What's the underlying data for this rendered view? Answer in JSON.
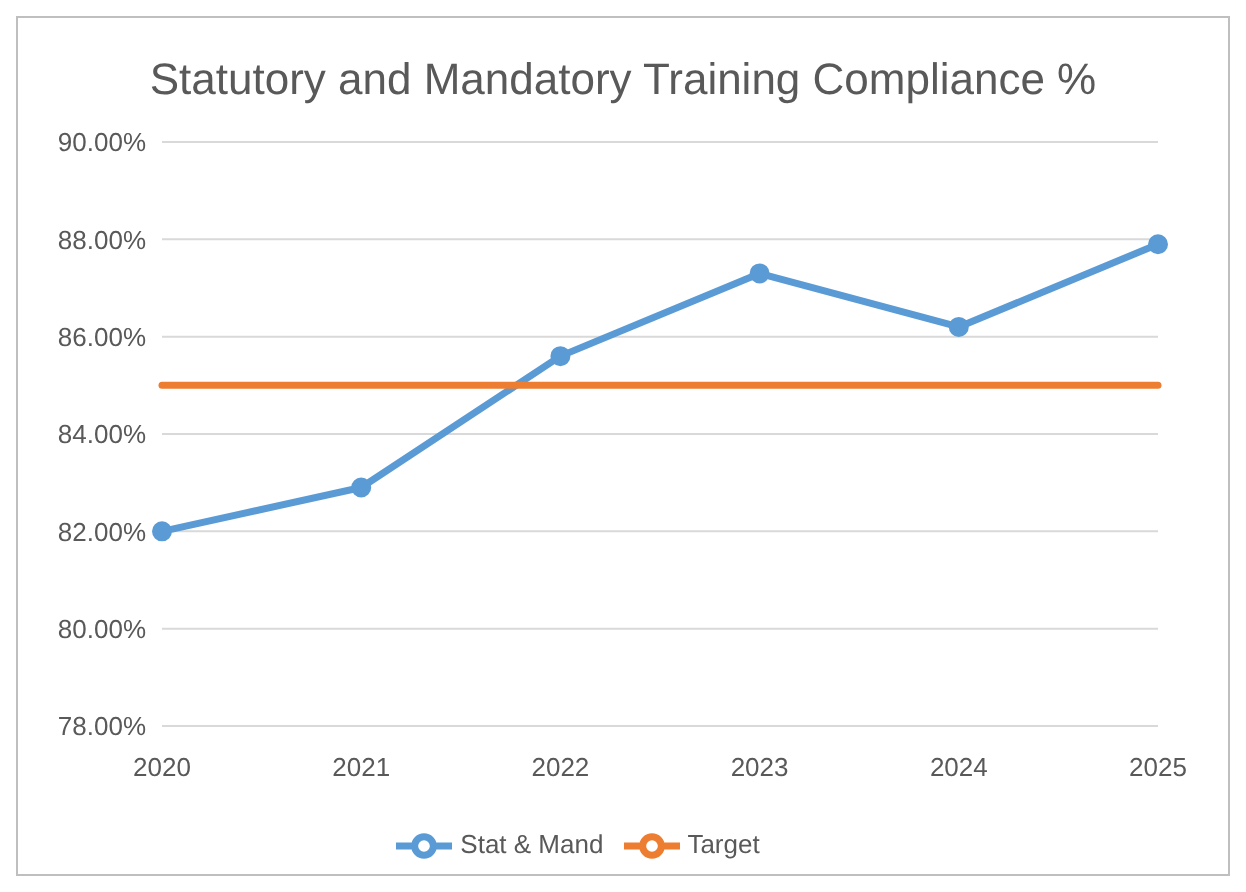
{
  "chart_data": {
    "type": "line",
    "title": "Statutory and Mandatory Training Compliance %",
    "categories": [
      "2020",
      "2021",
      "2022",
      "2023",
      "2024",
      "2025"
    ],
    "series": [
      {
        "name": "Stat & Mand",
        "color": "#5b9bd5",
        "values": [
          82.0,
          82.9,
          85.6,
          87.3,
          86.2,
          87.9
        ],
        "marker": "circle"
      },
      {
        "name": "Target",
        "color": "#ed7d31",
        "values": [
          85,
          85,
          85,
          85,
          85,
          85
        ],
        "marker": "none"
      }
    ],
    "ylim": [
      78,
      90
    ],
    "yticks": [
      {
        "value": 78,
        "label": "78.00%"
      },
      {
        "value": 80,
        "label": "80.00%"
      },
      {
        "value": 82,
        "label": "82.00%"
      },
      {
        "value": 84,
        "label": "84.00%"
      },
      {
        "value": 86,
        "label": "86.00%"
      },
      {
        "value": 88,
        "label": "88.00%"
      },
      {
        "value": 90,
        "label": "90.00%"
      }
    ],
    "grid": "y",
    "legend": "bottom"
  }
}
